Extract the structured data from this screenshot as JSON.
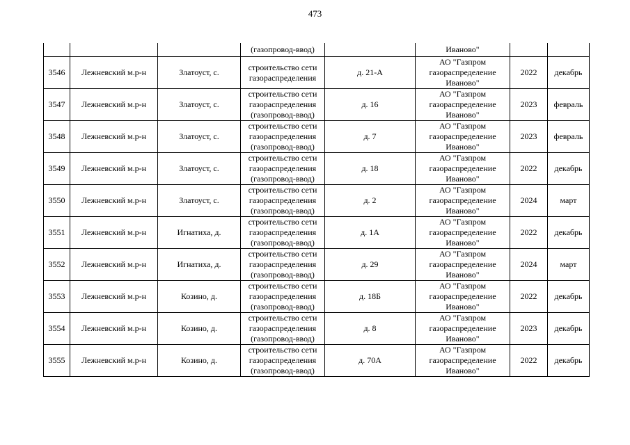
{
  "page_number": "473",
  "continuation_row": {
    "work": "(газопровод-ввод)",
    "org": "Иваново\""
  },
  "rows": [
    {
      "n": "3546",
      "district": "Лежневский м.р-н",
      "locality": "Златоуст, с.",
      "work": "строительство сети газораспределения",
      "address": "д. 21-А",
      "org": "АО \"Газпром газораспределение Иваново\"",
      "year": "2022",
      "month": "декабрь"
    },
    {
      "n": "3547",
      "district": "Лежневский м.р-н",
      "locality": "Златоуст, с.",
      "work": "строительство сети газораспределения (газопровод-ввод)",
      "address": "д. 16",
      "org": "АО \"Газпром газораспределение Иваново\"",
      "year": "2023",
      "month": "февраль"
    },
    {
      "n": "3548",
      "district": "Лежневский м.р-н",
      "locality": "Златоуст, с.",
      "work": "строительство сети газораспределения (газопровод-ввод)",
      "address": "д. 7",
      "org": "АО \"Газпром газораспределение Иваново\"",
      "year": "2023",
      "month": "февраль"
    },
    {
      "n": "3549",
      "district": "Лежневский м.р-н",
      "locality": "Златоуст, с.",
      "work": "строительство сети газораспределения (газопровод-ввод)",
      "address": "д. 18",
      "org": "АО \"Газпром газораспределение Иваново\"",
      "year": "2022",
      "month": "декабрь"
    },
    {
      "n": "3550",
      "district": "Лежневский м.р-н",
      "locality": "Златоуст, с.",
      "work": "строительство сети газораспределения (газопровод-ввод)",
      "address": "д. 2",
      "org": "АО \"Газпром газораспределение Иваново\"",
      "year": "2024",
      "month": "март"
    },
    {
      "n": "3551",
      "district": "Лежневский м.р-н",
      "locality": "Игнатиха, д.",
      "work": "строительство сети газораспределения (газопровод-ввод)",
      "address": "д. 1А",
      "org": "АО \"Газпром газораспределение Иваново\"",
      "year": "2022",
      "month": "декабрь"
    },
    {
      "n": "3552",
      "district": "Лежневский м.р-н",
      "locality": "Игнатиха, д.",
      "work": "строительство сети газораспределения (газопровод-ввод)",
      "address": "д. 29",
      "org": "АО \"Газпром газораспределение Иваново\"",
      "year": "2024",
      "month": "март"
    },
    {
      "n": "3553",
      "district": "Лежневский м.р-н",
      "locality": "Козино, д.",
      "work": "строительство сети газораспределения (газопровод-ввод)",
      "address": "д. 18Б",
      "org": "АО \"Газпром газораспределение Иваново\"",
      "year": "2022",
      "month": "декабрь"
    },
    {
      "n": "3554",
      "district": "Лежневский м.р-н",
      "locality": "Козино, д.",
      "work": "строительство сети газораспределения (газопровод-ввод)",
      "address": "д. 8",
      "org": "АО \"Газпром газораспределение Иваново\"",
      "year": "2023",
      "month": "декабрь"
    },
    {
      "n": "3555",
      "district": "Лежневский м.р-н",
      "locality": "Козино, д.",
      "work": "строительство сети газораспределения (газопровод-ввод)",
      "address": "д. 70А",
      "org": "АО \"Газпром газораспределение Иваново\"",
      "year": "2022",
      "month": "декабрь"
    }
  ]
}
